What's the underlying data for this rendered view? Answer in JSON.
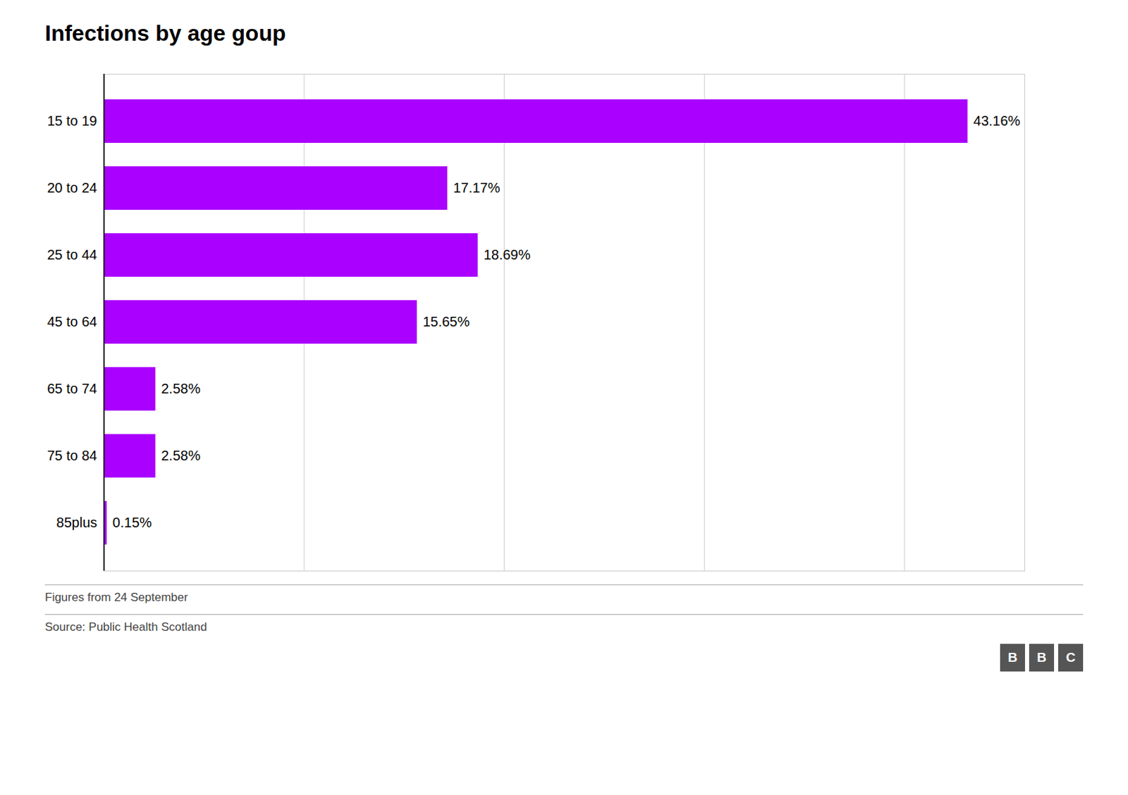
{
  "chart_data": {
    "type": "bar",
    "orientation": "horizontal",
    "title": "Infections by age goup",
    "categories": [
      "15 to 19",
      "20 to 24",
      "25 to 44",
      "45 to 64",
      "65 to 74",
      "75 to 84",
      "85plus"
    ],
    "values": [
      43.16,
      17.17,
      18.69,
      15.65,
      2.58,
      2.58,
      0.15
    ],
    "value_labels": [
      "43.16%",
      "17.17%",
      "18.69%",
      "15.65%",
      "2.58%",
      "2.58%",
      "0.15%"
    ],
    "data_labels": true,
    "color": "#aa00ff",
    "xlim": [
      0,
      46
    ],
    "xticks": [
      0,
      10,
      20,
      30,
      40
    ],
    "grid": true,
    "tick_labels": "y",
    "annotations": [
      "Figures from 24 September",
      "Source: Public Health Scotland",
      "BBC"
    ]
  }
}
